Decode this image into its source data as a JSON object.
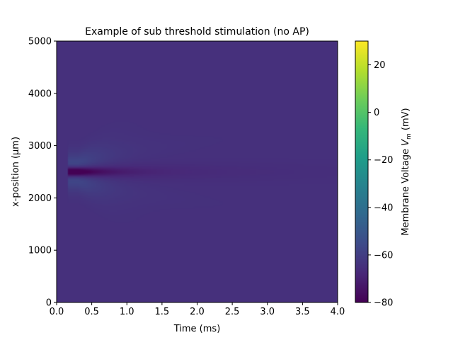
{
  "chart_data": {
    "type": "heatmap",
    "title": "Example of sub threshold stimulation (no AP)",
    "xlabel": "Time (ms)",
    "ylabel": "x-position (μm)",
    "colorbar_label": "Membrane Voltage V_m (mV)",
    "colorbar_label_parts": {
      "prefix": "Membrane Voltage ",
      "symbol": "V",
      "subscript": "m",
      "suffix": " (mV)"
    },
    "xlim": [
      0.0,
      4.0
    ],
    "ylim": [
      0,
      5000
    ],
    "clim": [
      -80,
      30
    ],
    "colormap": "viridis",
    "x_ticks": [
      {
        "value": 0.0,
        "label": "0.0"
      },
      {
        "value": 0.5,
        "label": "0.5"
      },
      {
        "value": 1.0,
        "label": "1.0"
      },
      {
        "value": 1.5,
        "label": "1.5"
      },
      {
        "value": 2.0,
        "label": "2.0"
      },
      {
        "value": 2.5,
        "label": "2.5"
      },
      {
        "value": 3.0,
        "label": "3.0"
      },
      {
        "value": 3.5,
        "label": "3.5"
      },
      {
        "value": 4.0,
        "label": "4.0"
      }
    ],
    "y_ticks": [
      {
        "value": 0,
        "label": "0"
      },
      {
        "value": 1000,
        "label": "1000"
      },
      {
        "value": 2000,
        "label": "2000"
      },
      {
        "value": 3000,
        "label": "3000"
      },
      {
        "value": 4000,
        "label": "4000"
      },
      {
        "value": 5000,
        "label": "5000"
      }
    ],
    "colorbar_ticks": [
      {
        "value": 20,
        "label": "20"
      },
      {
        "value": 0,
        "label": "0"
      },
      {
        "value": -20,
        "label": "−20"
      },
      {
        "value": -40,
        "label": "−40"
      },
      {
        "value": -60,
        "label": "−60"
      },
      {
        "value": -80,
        "label": "−80"
      }
    ],
    "field": {
      "resting_mV": -65,
      "stimulus_time_ms": 0.3,
      "stimulus_position_um": 2500,
      "peak_hyperpolarization_mV": -80,
      "depolarized_halo_mV": -50
    }
  }
}
